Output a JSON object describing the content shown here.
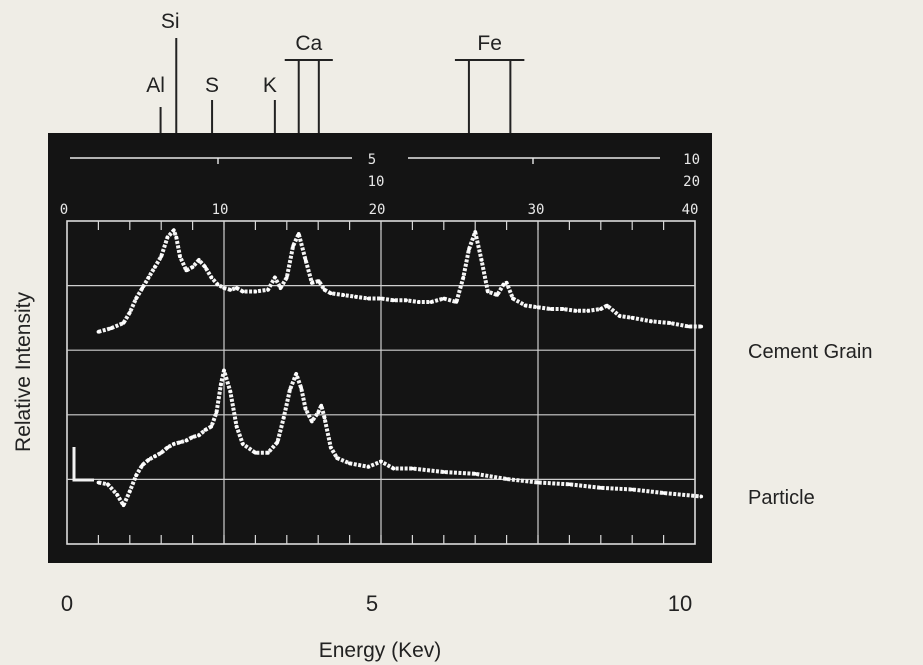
{
  "chart_data": {
    "type": "line",
    "xlabel": "Energy (Kev)",
    "ylabel": "Relative Intensity",
    "xlim": [
      0,
      10
    ],
    "x_ticks": [
      "0",
      "5",
      "10"
    ],
    "series": [
      {
        "name": "Cement Grain",
        "x": [
          0.5,
          0.7,
          0.9,
          1.0,
          1.1,
          1.2,
          1.3,
          1.4,
          1.5,
          1.6,
          1.7,
          1.74,
          1.8,
          1.9,
          2.0,
          2.1,
          2.2,
          2.3,
          2.4,
          2.5,
          2.6,
          2.7,
          2.8,
          3.0,
          3.2,
          3.31,
          3.4,
          3.5,
          3.6,
          3.69,
          3.8,
          3.9,
          4.01,
          4.1,
          4.2,
          4.4,
          4.6,
          4.8,
          5.0,
          5.2,
          5.4,
          5.6,
          5.8,
          6.0,
          6.2,
          6.31,
          6.4,
          6.5,
          6.6,
          6.7,
          6.85,
          6.95,
          7.0,
          7.1,
          7.3,
          7.5,
          7.7,
          7.9,
          8.1,
          8.3,
          8.5,
          8.6,
          8.8,
          9.0,
          9.3,
          9.6,
          9.9,
          10.1
        ],
        "y": [
          0.39,
          0.41,
          0.44,
          0.5,
          0.58,
          0.64,
          0.7,
          0.76,
          0.82,
          0.93,
          0.97,
          0.93,
          0.82,
          0.74,
          0.76,
          0.8,
          0.76,
          0.7,
          0.66,
          0.64,
          0.63,
          0.64,
          0.62,
          0.62,
          0.63,
          0.7,
          0.64,
          0.7,
          0.88,
          0.95,
          0.8,
          0.67,
          0.68,
          0.63,
          0.61,
          0.6,
          0.59,
          0.58,
          0.58,
          0.57,
          0.57,
          0.56,
          0.56,
          0.58,
          0.56,
          0.7,
          0.86,
          0.96,
          0.8,
          0.62,
          0.6,
          0.66,
          0.67,
          0.58,
          0.54,
          0.53,
          0.52,
          0.52,
          0.51,
          0.51,
          0.52,
          0.54,
          0.48,
          0.47,
          0.45,
          0.44,
          0.42,
          0.42
        ]
      },
      {
        "name": "Particle",
        "x": [
          0.5,
          0.65,
          0.8,
          0.9,
          1.0,
          1.1,
          1.2,
          1.3,
          1.4,
          1.5,
          1.6,
          1.7,
          1.8,
          1.9,
          2.0,
          2.1,
          2.2,
          2.3,
          2.38,
          2.45,
          2.5,
          2.6,
          2.7,
          2.8,
          3.0,
          3.2,
          3.35,
          3.45,
          3.55,
          3.65,
          3.73,
          3.8,
          3.9,
          4.0,
          4.05,
          4.1,
          4.2,
          4.3,
          4.5,
          4.8,
          5.0,
          5.2,
          5.5,
          6.0,
          6.5,
          7.0,
          7.5,
          8.0,
          8.5,
          9.0,
          9.5,
          10.1
        ],
        "y": [
          0.1,
          0.09,
          0.03,
          -0.03,
          0.05,
          0.14,
          0.2,
          0.23,
          0.25,
          0.27,
          0.3,
          0.32,
          0.33,
          0.34,
          0.36,
          0.37,
          0.4,
          0.42,
          0.5,
          0.66,
          0.74,
          0.62,
          0.42,
          0.32,
          0.27,
          0.27,
          0.33,
          0.47,
          0.63,
          0.72,
          0.64,
          0.52,
          0.45,
          0.5,
          0.54,
          0.47,
          0.3,
          0.24,
          0.21,
          0.19,
          0.22,
          0.18,
          0.18,
          0.16,
          0.15,
          0.12,
          0.1,
          0.09,
          0.07,
          0.06,
          0.04,
          0.02
        ]
      }
    ],
    "element_markers": [
      {
        "label": "Al",
        "kev": [
          1.49
        ]
      },
      {
        "label": "Si",
        "kev": [
          1.74
        ]
      },
      {
        "label": "S",
        "kev": [
          2.31
        ]
      },
      {
        "label": "K",
        "kev": [
          3.31
        ]
      },
      {
        "label": "Ca",
        "kev": [
          3.69,
          4.01
        ]
      },
      {
        "label": "Fe",
        "kev": [
          6.4,
          7.06
        ]
      }
    ],
    "scope_scales": {
      "row1": [
        "5",
        "10"
      ],
      "row2": [
        "10",
        "20"
      ],
      "row3": [
        "0",
        "10",
        "20",
        "30",
        "40"
      ]
    }
  }
}
